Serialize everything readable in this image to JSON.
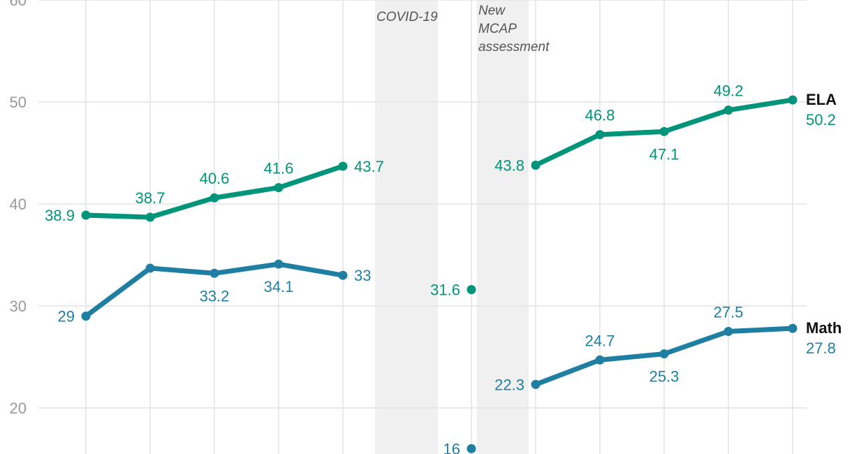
{
  "chart_data": {
    "type": "line",
    "ylim": [
      20,
      60
    ],
    "y_ticks": [
      "20",
      "30",
      "40",
      "50",
      "60"
    ],
    "grid": true,
    "colors": {
      "ela": "#00957A",
      "math": "#1E7FA3",
      "band": "#f0f0f0",
      "grid": "#e3e3e3"
    },
    "annotations": [
      {
        "id": "covid",
        "lines": [
          "COVID-19"
        ]
      },
      {
        "id": "mcap",
        "lines": [
          "New",
          "MCAP",
          "assessment"
        ]
      }
    ],
    "series": [
      {
        "name": "ELA",
        "end_label": "50.2",
        "color": "#00957A",
        "segments": [
          [
            {
              "x": 0,
              "y": 38.9,
              "label": "38.9",
              "pos": "left"
            },
            {
              "x": 1,
              "y": 38.7,
              "label": "38.7",
              "pos": "above"
            },
            {
              "x": 2,
              "y": 40.6,
              "label": "40.6",
              "pos": "above"
            },
            {
              "x": 3,
              "y": 41.6,
              "label": "41.6",
              "pos": "above"
            },
            {
              "x": 4,
              "y": 43.7,
              "label": "43.7",
              "pos": "right"
            }
          ],
          [
            {
              "x": 6,
              "y": 31.6,
              "label": "31.6",
              "pos": "left"
            }
          ],
          [
            {
              "x": 7,
              "y": 43.8,
              "label": "43.8",
              "pos": "left"
            },
            {
              "x": 8,
              "y": 46.8,
              "label": "46.8",
              "pos": "above"
            },
            {
              "x": 9,
              "y": 47.1,
              "label": "47.1",
              "pos": "below"
            },
            {
              "x": 10,
              "y": 49.2,
              "label": "49.2",
              "pos": "above"
            },
            {
              "x": 11,
              "y": 50.2,
              "label": "",
              "pos": "none"
            }
          ]
        ]
      },
      {
        "name": "Math",
        "end_label": "27.8",
        "color": "#1E7FA3",
        "segments": [
          [
            {
              "x": 0,
              "y": 29,
              "label": "29",
              "pos": "left"
            },
            {
              "x": 1,
              "y": 33.7,
              "label": "",
              "pos": "none"
            },
            {
              "x": 2,
              "y": 33.2,
              "label": "33.2",
              "pos": "below"
            },
            {
              "x": 3,
              "y": 34.1,
              "label": "34.1",
              "pos": "below"
            },
            {
              "x": 4,
              "y": 33,
              "label": "33",
              "pos": "right"
            }
          ],
          [
            {
              "x": 6,
              "y": 16,
              "label": "16",
              "pos": "left"
            }
          ],
          [
            {
              "x": 7,
              "y": 22.3,
              "label": "22.3",
              "pos": "left"
            },
            {
              "x": 8,
              "y": 24.7,
              "label": "24.7",
              "pos": "above"
            },
            {
              "x": 9,
              "y": 25.3,
              "label": "25.3",
              "pos": "below"
            },
            {
              "x": 10,
              "y": 27.5,
              "label": "27.5",
              "pos": "above"
            },
            {
              "x": 11,
              "y": 27.8,
              "label": "",
              "pos": "none"
            }
          ]
        ]
      }
    ]
  }
}
